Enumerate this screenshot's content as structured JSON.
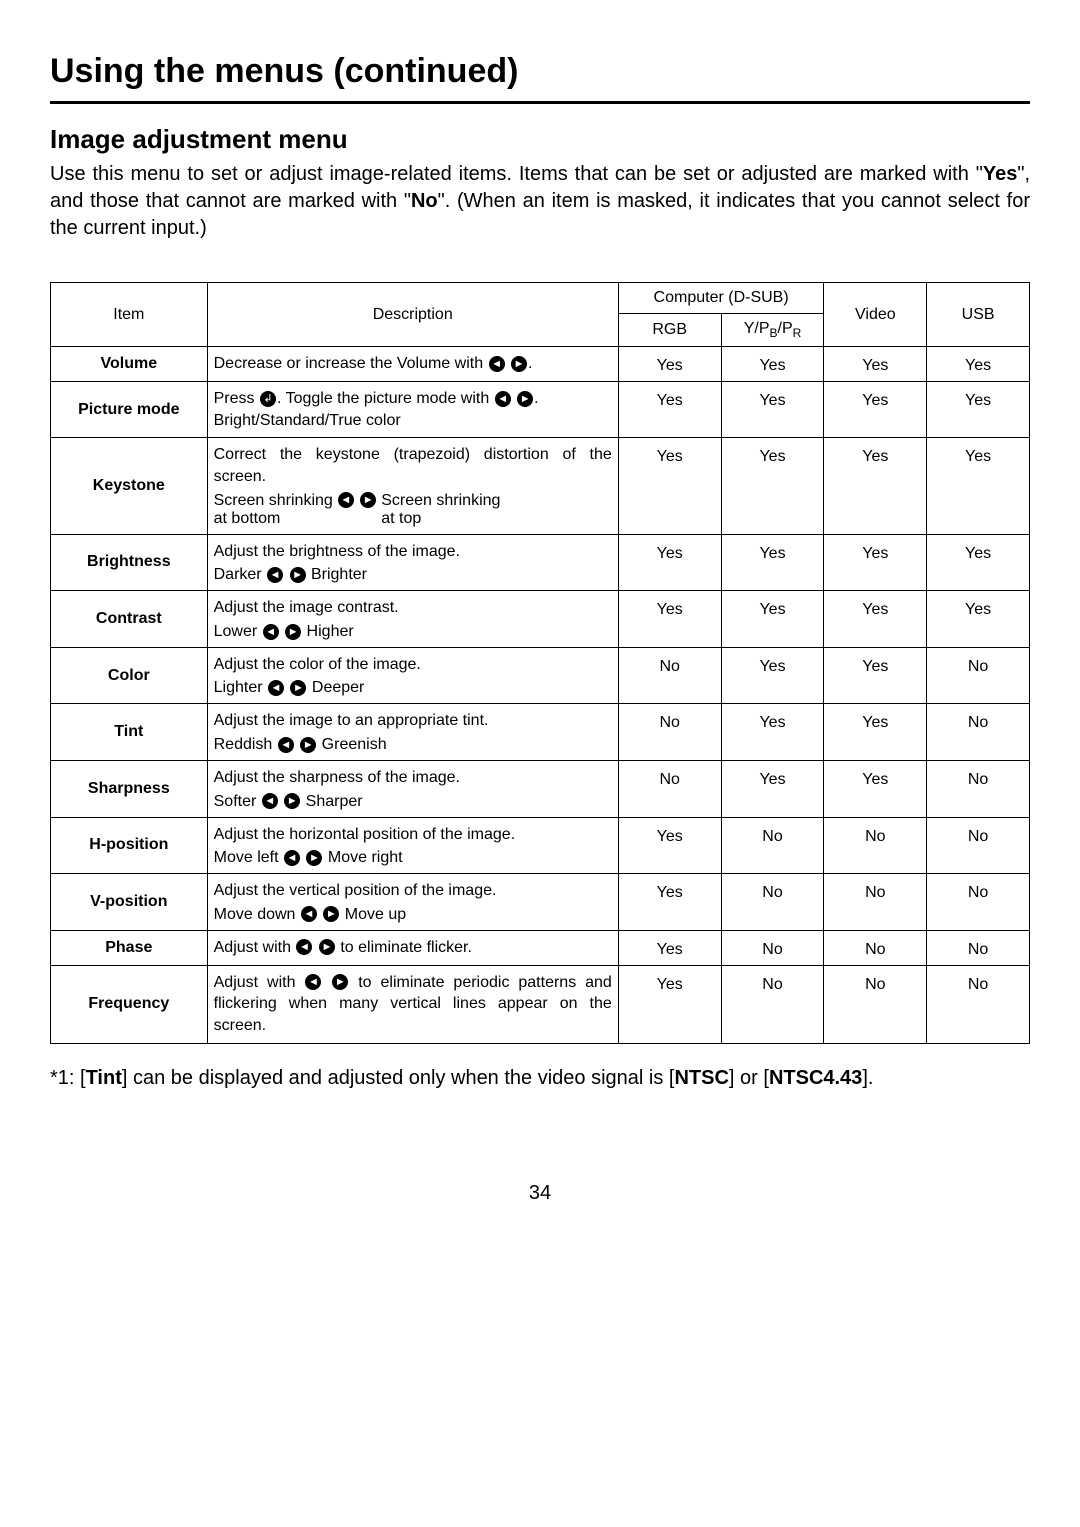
{
  "page_title": "Using the menus (continued)",
  "section_title": "Image adjustment menu",
  "intro_parts": {
    "p1": "Use this menu to set or adjust image-related items. Items that can be set or adjusted are marked with \"",
    "b1": "Yes",
    "p2": "\", and those that cannot are marked with \"",
    "b2": "No",
    "p3": "\". (When an item is masked, it indicates that you cannot select for the current input.)"
  },
  "headers": {
    "item": "Item",
    "description": "Description",
    "computer": "Computer (D-SUB)",
    "rgb": "RGB",
    "ypbpr_pre": "Y/P",
    "ypbpr_b": "B",
    "ypbpr_mid": "/P",
    "ypbpr_r": "R",
    "video": "Video",
    "usb": "USB"
  },
  "rows": [
    {
      "item": "Volume",
      "desc_pre": "Decrease or increase the Volume with ",
      "desc_post": ".",
      "rgb": "Yes",
      "ypbpr": "Yes",
      "video": "Yes",
      "usb": "Yes",
      "type": "lr"
    },
    {
      "item": "Picture mode",
      "desc_pre": "Press ",
      "desc_mid": ". Toggle the picture mode with ",
      "desc_post": ".",
      "desc_line2": "Bright/Standard/True color",
      "rgb": "Yes",
      "ypbpr": "Yes",
      "video": "Yes",
      "usb": "Yes",
      "type": "enter_lr"
    },
    {
      "item": "Keystone",
      "desc_pre": "Correct the keystone (trapezoid) distortion of the screen.",
      "desc_left": "Screen shrinking at bottom",
      "desc_right": "Screen shrinking at top",
      "rgb": "Yes",
      "ypbpr": "Yes",
      "video": "Yes",
      "usb": "Yes",
      "type": "keystone"
    },
    {
      "item": "Brightness",
      "desc_pre": "Adjust the brightness of the image.",
      "left_label": "Darker",
      "right_label": "Brighter",
      "rgb": "Yes",
      "ypbpr": "Yes",
      "video": "Yes",
      "usb": "Yes",
      "type": "scale"
    },
    {
      "item": "Contrast",
      "desc_pre": "Adjust the image contrast.",
      "left_label": "Lower",
      "right_label": "Higher",
      "rgb": "Yes",
      "ypbpr": "Yes",
      "video": "Yes",
      "usb": "Yes",
      "type": "scale"
    },
    {
      "item": "Color",
      "desc_pre": "Adjust the color of the image.",
      "left_label": "Lighter",
      "right_label": "Deeper",
      "rgb": "No",
      "ypbpr": "Yes",
      "video": "Yes",
      "usb": "No",
      "type": "scale"
    },
    {
      "item": "Tint",
      "desc_pre": "Adjust the image to an appropriate tint.",
      "left_label": "Reddish",
      "right_label": "Greenish",
      "rgb": "No",
      "ypbpr": "Yes",
      "video": "Yes",
      "usb": "No",
      "type": "scale"
    },
    {
      "item": "Sharpness",
      "desc_pre": "Adjust the sharpness of the image.",
      "left_label": "Softer",
      "right_label": "Sharper",
      "rgb": "No",
      "ypbpr": "Yes",
      "video": "Yes",
      "usb": "No",
      "type": "scale"
    },
    {
      "item": "H-position",
      "desc_pre": "Adjust the horizontal position of the image.",
      "left_label": "Move left",
      "right_label": "Move right",
      "rgb": "Yes",
      "ypbpr": "No",
      "video": "No",
      "usb": "No",
      "type": "scale"
    },
    {
      "item": "V-position",
      "desc_pre": "Adjust the vertical position of the image.",
      "left_label": "Move down",
      "right_label": "Move up",
      "rgb": "Yes",
      "ypbpr": "No",
      "video": "No",
      "usb": "No",
      "type": "scale"
    },
    {
      "item": "Phase",
      "desc_pre": "Adjust with ",
      "desc_post": " to eliminate flicker.",
      "rgb": "Yes",
      "ypbpr": "No",
      "video": "No",
      "usb": "No",
      "type": "lr_mid"
    },
    {
      "item": "Frequency",
      "desc_pre": "Adjust with ",
      "desc_post": " to eliminate periodic patterns and flickering when many vertical lines appear on the screen.",
      "rgb": "Yes",
      "ypbpr": "No",
      "video": "No",
      "usb": "No",
      "type": "lr_mid"
    }
  ],
  "footnote": {
    "p1": "*1: [",
    "b1": "Tint",
    "p2": "] can be displayed and adjusted only when the video signal is [",
    "b2": "NTSC",
    "p3": "] or [",
    "b3": "NTSC4.43",
    "p4": "]."
  },
  "page_number": "34"
}
